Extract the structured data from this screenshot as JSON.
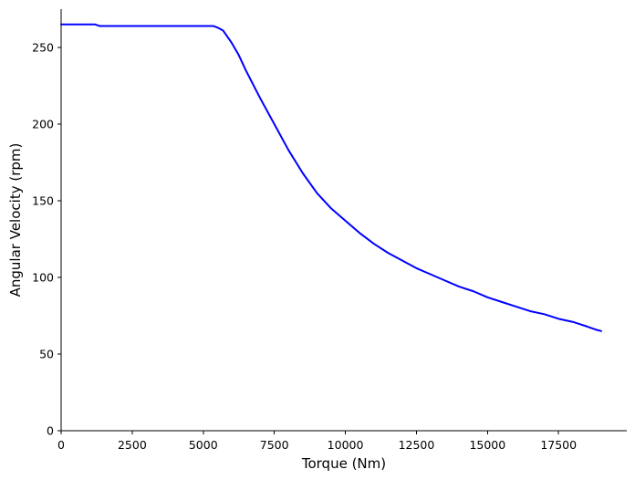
{
  "chart_data": {
    "type": "line",
    "title": "",
    "xlabel": "Torque (Nm)",
    "ylabel": "Angular Velocity (rpm)",
    "xlim": [
      0,
      19900
    ],
    "ylim": [
      0,
      275
    ],
    "xticks": [
      0,
      2500,
      5000,
      7500,
      10000,
      12500,
      15000,
      17500
    ],
    "yticks": [
      0,
      50,
      100,
      150,
      200,
      250
    ],
    "grid": false,
    "legend": "none",
    "series": [
      {
        "color": "#0000ff",
        "x": [
          0,
          1200,
          1350,
          2500,
          5000,
          5350,
          5500,
          5700,
          6000,
          6250,
          6500,
          7000,
          7500,
          8000,
          8500,
          9000,
          9500,
          10000,
          10500,
          11000,
          11500,
          12000,
          12500,
          13000,
          13500,
          14000,
          14500,
          15000,
          15500,
          16000,
          16500,
          17000,
          17500,
          18000,
          18500,
          18800,
          19000
        ],
        "y": [
          265,
          265,
          264,
          264,
          264,
          264,
          263,
          261,
          253,
          245,
          235,
          217,
          200,
          183,
          168,
          155,
          145,
          137,
          129,
          122,
          116,
          111,
          106,
          102,
          98,
          94,
          91,
          87,
          84,
          81,
          78,
          76,
          73,
          71,
          68,
          66,
          65
        ]
      }
    ]
  }
}
